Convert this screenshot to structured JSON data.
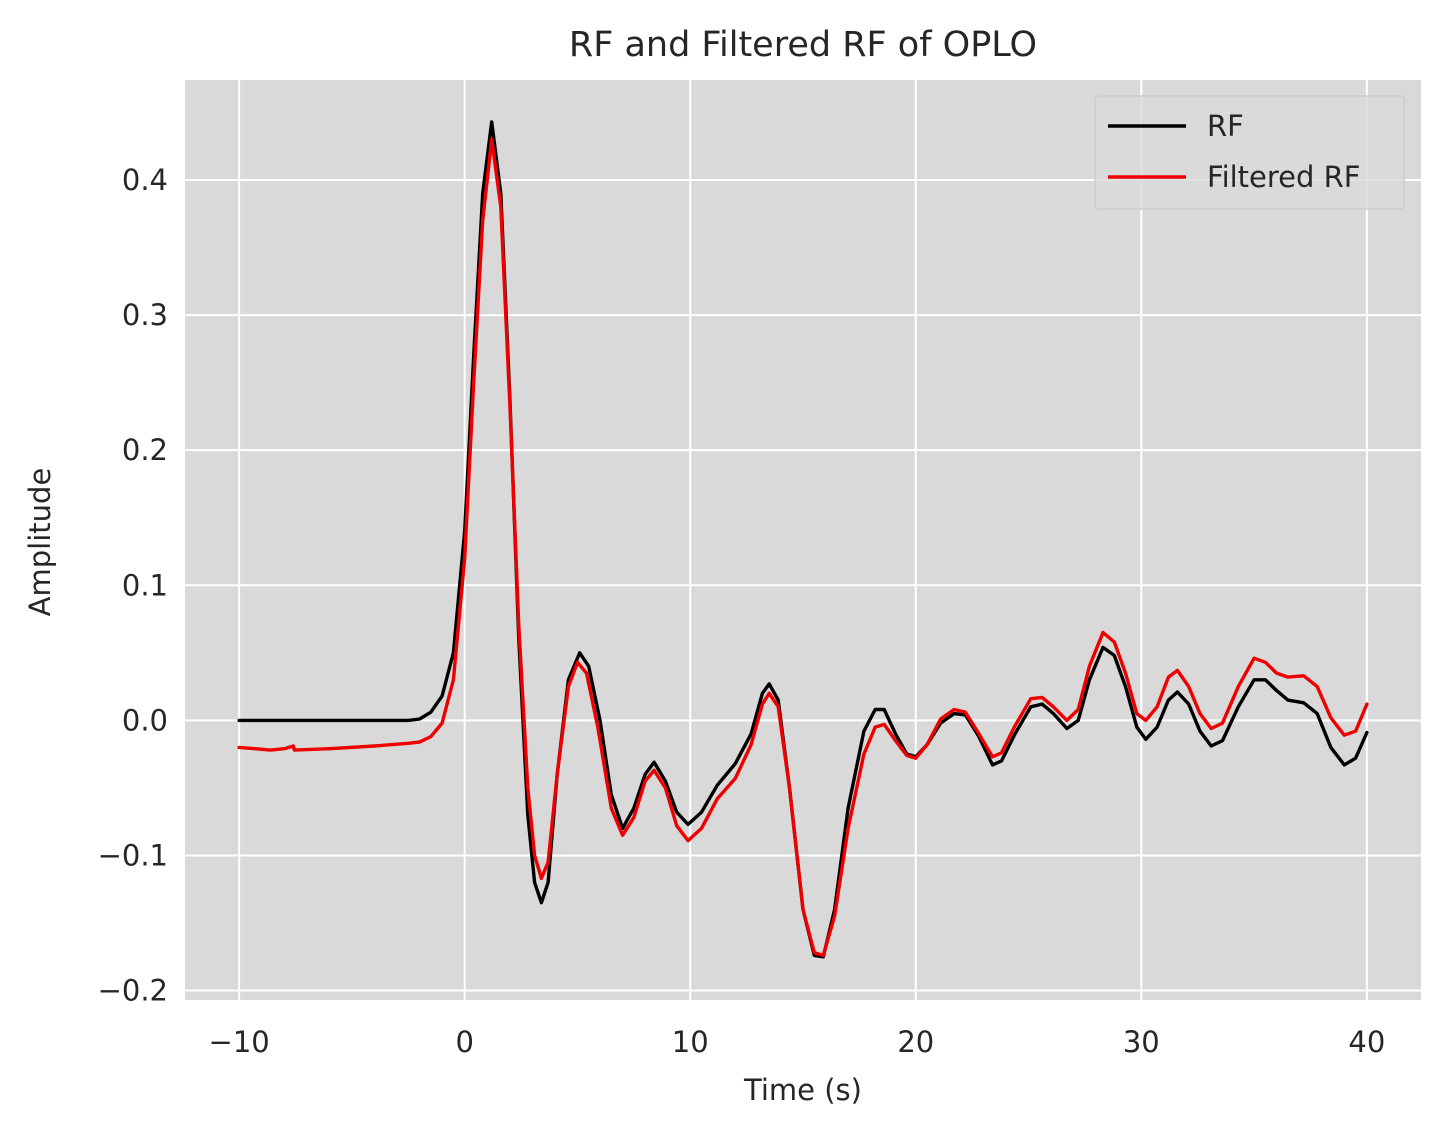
{
  "chart_data": {
    "type": "line",
    "title": "RF and Filtered RF of OPLO",
    "xlabel": "Time (s)",
    "ylabel": "Amplitude",
    "xlim": [
      -12.4,
      42.4
    ],
    "ylim": [
      -0.207,
      0.474
    ],
    "xticks": [
      -10,
      0,
      10,
      20,
      30,
      40
    ],
    "xtick_labels": [
      "−10",
      "0",
      "10",
      "20",
      "30",
      "40"
    ],
    "yticks": [
      -0.2,
      -0.1,
      0.0,
      0.1,
      0.2,
      0.3,
      0.4
    ],
    "ytick_labels": [
      "−0.2",
      "−0.1",
      "0.0",
      "0.1",
      "0.2",
      "0.3",
      "0.4"
    ],
    "grid": true,
    "background": "#d9d9d9",
    "grid_color": "#ffffff",
    "legend_position": "top-right",
    "series": [
      {
        "name": "RF",
        "color": "#000000",
        "points": [
          [
            -10,
            0.0
          ],
          [
            -8,
            0.0
          ],
          [
            -6,
            0.0
          ],
          [
            -4,
            0.0
          ],
          [
            -2.5,
            0.0
          ],
          [
            -2,
            0.001
          ],
          [
            -1.5,
            0.006
          ],
          [
            -1,
            0.018
          ],
          [
            -0.5,
            0.05
          ],
          [
            0,
            0.14
          ],
          [
            0.4,
            0.27
          ],
          [
            0.8,
            0.39
          ],
          [
            1.2,
            0.443
          ],
          [
            1.6,
            0.39
          ],
          [
            2,
            0.24
          ],
          [
            2.4,
            0.06
          ],
          [
            2.8,
            -0.07
          ],
          [
            3.1,
            -0.12
          ],
          [
            3.4,
            -0.135
          ],
          [
            3.7,
            -0.12
          ],
          [
            4.1,
            -0.04
          ],
          [
            4.6,
            0.03
          ],
          [
            5.1,
            0.05
          ],
          [
            5.5,
            0.04
          ],
          [
            6,
            0.0
          ],
          [
            6.5,
            -0.055
          ],
          [
            7,
            -0.08
          ],
          [
            7.5,
            -0.065
          ],
          [
            8,
            -0.04
          ],
          [
            8.4,
            -0.031
          ],
          [
            8.9,
            -0.045
          ],
          [
            9.4,
            -0.068
          ],
          [
            9.9,
            -0.077
          ],
          [
            10.5,
            -0.068
          ],
          [
            11.2,
            -0.048
          ],
          [
            12,
            -0.032
          ],
          [
            12.7,
            -0.01
          ],
          [
            13.2,
            0.02
          ],
          [
            13.5,
            0.027
          ],
          [
            13.9,
            0.015
          ],
          [
            14.4,
            -0.05
          ],
          [
            15,
            -0.14
          ],
          [
            15.5,
            -0.174
          ],
          [
            15.9,
            -0.175
          ],
          [
            16.4,
            -0.14
          ],
          [
            17,
            -0.065
          ],
          [
            17.7,
            -0.008
          ],
          [
            18.2,
            0.008
          ],
          [
            18.6,
            0.008
          ],
          [
            19.1,
            -0.01
          ],
          [
            19.6,
            -0.025
          ],
          [
            20,
            -0.027
          ],
          [
            20.5,
            -0.018
          ],
          [
            21.1,
            -0.002
          ],
          [
            21.7,
            0.005
          ],
          [
            22.2,
            0.004
          ],
          [
            22.8,
            -0.012
          ],
          [
            23.4,
            -0.033
          ],
          [
            23.8,
            -0.03
          ],
          [
            24.4,
            -0.01
          ],
          [
            25.1,
            0.01
          ],
          [
            25.6,
            0.012
          ],
          [
            26.1,
            0.005
          ],
          [
            26.7,
            -0.006
          ],
          [
            27.2,
            0.0
          ],
          [
            27.7,
            0.03
          ],
          [
            28.3,
            0.054
          ],
          [
            28.8,
            0.048
          ],
          [
            29.3,
            0.025
          ],
          [
            29.8,
            -0.005
          ],
          [
            30.2,
            -0.014
          ],
          [
            30.7,
            -0.005
          ],
          [
            31.2,
            0.015
          ],
          [
            31.6,
            0.021
          ],
          [
            32.1,
            0.012
          ],
          [
            32.6,
            -0.008
          ],
          [
            33.1,
            -0.019
          ],
          [
            33.6,
            -0.015
          ],
          [
            34.3,
            0.01
          ],
          [
            35,
            0.03
          ],
          [
            35.5,
            0.03
          ],
          [
            36,
            0.022
          ],
          [
            36.5,
            0.015
          ],
          [
            37.2,
            0.013
          ],
          [
            37.8,
            0.005
          ],
          [
            38.4,
            -0.02
          ],
          [
            39,
            -0.033
          ],
          [
            39.5,
            -0.028
          ],
          [
            40,
            -0.009
          ]
        ]
      },
      {
        "name": "Filtered RF",
        "color": "#ee0000",
        "points": [
          [
            -10,
            -0.02
          ],
          [
            -9.3,
            -0.021
          ],
          [
            -8.6,
            -0.022
          ],
          [
            -8,
            -0.021
          ],
          [
            -7.6,
            -0.019
          ],
          [
            -7.55,
            -0.022
          ],
          [
            -6,
            -0.021
          ],
          [
            -4,
            -0.019
          ],
          [
            -2.5,
            -0.017
          ],
          [
            -2,
            -0.016
          ],
          [
            -1.5,
            -0.012
          ],
          [
            -1,
            -0.002
          ],
          [
            -0.5,
            0.03
          ],
          [
            0,
            0.12
          ],
          [
            0.4,
            0.25
          ],
          [
            0.8,
            0.37
          ],
          [
            1.2,
            0.43
          ],
          [
            1.6,
            0.38
          ],
          [
            2,
            0.235
          ],
          [
            2.4,
            0.07
          ],
          [
            2.8,
            -0.05
          ],
          [
            3.1,
            -0.1
          ],
          [
            3.4,
            -0.117
          ],
          [
            3.7,
            -0.105
          ],
          [
            4.1,
            -0.04
          ],
          [
            4.6,
            0.025
          ],
          [
            5.0,
            0.043
          ],
          [
            5.4,
            0.035
          ],
          [
            5.9,
            -0.005
          ],
          [
            6.5,
            -0.065
          ],
          [
            7,
            -0.085
          ],
          [
            7.5,
            -0.072
          ],
          [
            8,
            -0.045
          ],
          [
            8.4,
            -0.037
          ],
          [
            8.9,
            -0.05
          ],
          [
            9.4,
            -0.078
          ],
          [
            9.9,
            -0.089
          ],
          [
            10.5,
            -0.08
          ],
          [
            11.2,
            -0.058
          ],
          [
            12,
            -0.043
          ],
          [
            12.7,
            -0.018
          ],
          [
            13.2,
            0.012
          ],
          [
            13.5,
            0.02
          ],
          [
            13.9,
            0.01
          ],
          [
            14.4,
            -0.05
          ],
          [
            15,
            -0.14
          ],
          [
            15.5,
            -0.172
          ],
          [
            15.9,
            -0.174
          ],
          [
            16.4,
            -0.145
          ],
          [
            17,
            -0.08
          ],
          [
            17.7,
            -0.025
          ],
          [
            18.2,
            -0.005
          ],
          [
            18.6,
            -0.003
          ],
          [
            19.1,
            -0.015
          ],
          [
            19.6,
            -0.026
          ],
          [
            20,
            -0.028
          ],
          [
            20.5,
            -0.018
          ],
          [
            21.1,
            0.001
          ],
          [
            21.7,
            0.008
          ],
          [
            22.2,
            0.006
          ],
          [
            22.8,
            -0.01
          ],
          [
            23.4,
            -0.027
          ],
          [
            23.8,
            -0.024
          ],
          [
            24.4,
            -0.004
          ],
          [
            25.1,
            0.016
          ],
          [
            25.6,
            0.017
          ],
          [
            26.1,
            0.01
          ],
          [
            26.7,
            0.0
          ],
          [
            27.2,
            0.008
          ],
          [
            27.7,
            0.04
          ],
          [
            28.3,
            0.065
          ],
          [
            28.8,
            0.058
          ],
          [
            29.3,
            0.035
          ],
          [
            29.8,
            0.005
          ],
          [
            30.2,
            0.0
          ],
          [
            30.7,
            0.01
          ],
          [
            31.2,
            0.032
          ],
          [
            31.6,
            0.037
          ],
          [
            32.1,
            0.025
          ],
          [
            32.6,
            0.005
          ],
          [
            33.1,
            -0.006
          ],
          [
            33.6,
            -0.002
          ],
          [
            34.3,
            0.025
          ],
          [
            35,
            0.046
          ],
          [
            35.5,
            0.043
          ],
          [
            36,
            0.035
          ],
          [
            36.5,
            0.032
          ],
          [
            37.2,
            0.033
          ],
          [
            37.8,
            0.025
          ],
          [
            38.4,
            0.002
          ],
          [
            39,
            -0.011
          ],
          [
            39.5,
            -0.008
          ],
          [
            40,
            0.012
          ]
        ]
      }
    ]
  }
}
